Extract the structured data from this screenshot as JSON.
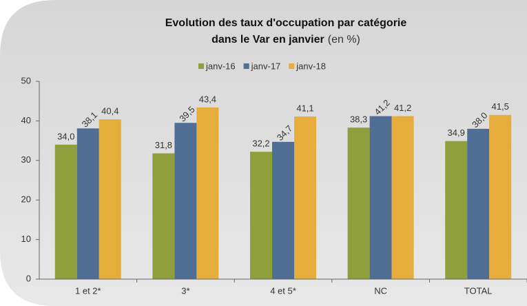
{
  "chart_data": {
    "type": "bar",
    "title": [
      "Evolution des taux d'occupation par catégorie",
      "dans le Var en janvier"
    ],
    "title_note": "(en %)",
    "categories": [
      "1 et 2*",
      "3*",
      "4 et 5*",
      "NC",
      "TOTAL"
    ],
    "series": [
      {
        "name": "janv-16",
        "color": "#8f9f3b",
        "values": [
          34.0,
          31.8,
          32.2,
          38.3,
          34.9
        ],
        "value_labels": [
          "34,0",
          "31,8",
          "32,2",
          "38,3",
          "34,9"
        ]
      },
      {
        "name": "janv-17",
        "color": "#4f6d95",
        "values": [
          38.1,
          39.5,
          34.7,
          41.2,
          38.0
        ],
        "value_labels": [
          "38,1",
          "39,5",
          "34,7",
          "41,2",
          "38,0"
        ]
      },
      {
        "name": "janv-18",
        "color": "#e6ad3d",
        "values": [
          40.4,
          43.4,
          41.1,
          41.2,
          41.5
        ],
        "value_labels": [
          "40,4",
          "43,4",
          "41,1",
          "41,2",
          "41,5"
        ]
      }
    ],
    "ylim": [
      0,
      50
    ],
    "yticks": [
      0,
      10,
      20,
      30,
      40,
      50
    ],
    "legend": "top"
  }
}
